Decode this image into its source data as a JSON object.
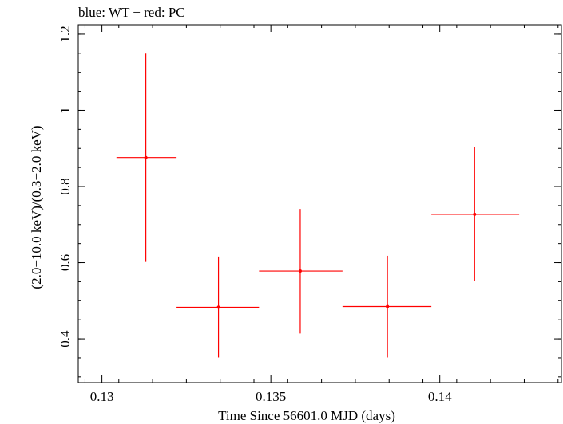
{
  "chart_data": {
    "type": "scatter",
    "title": "blue: WT − red: PC",
    "xlabel": "Time Since 56601.0 MJD (days)",
    "ylabel": "(2.0−10.0 keV)/(0.3−2.0 keV)",
    "xlim": [
      0.1293,
      0.1436
    ],
    "ylim": [
      0.285,
      1.225
    ],
    "x_ticks": [
      0.13,
      0.135,
      0.14
    ],
    "x_tick_labels": [
      "0.13",
      "0.135",
      "0.14"
    ],
    "y_ticks": [
      0.4,
      0.6,
      0.8,
      1.0,
      1.2
    ],
    "y_tick_labels": [
      "0.4",
      "0.6",
      "0.8",
      "1",
      "1.2"
    ],
    "grid": false,
    "series": [
      {
        "name": "PC",
        "color": "#ff0000",
        "points": [
          {
            "x": 0.1313,
            "y": 0.876,
            "xerr_low": 0.13043,
            "xerr_high": 0.13221,
            "yerr_low": 0.602,
            "yerr_high": 1.149
          },
          {
            "x": 0.13345,
            "y": 0.483,
            "xerr_low": 0.13221,
            "xerr_high": 0.13465,
            "yerr_low": 0.351,
            "yerr_high": 0.616
          },
          {
            "x": 0.13587,
            "y": 0.578,
            "xerr_low": 0.13465,
            "xerr_high": 0.13712,
            "yerr_low": 0.414,
            "yerr_high": 0.741
          },
          {
            "x": 0.13845,
            "y": 0.485,
            "xerr_low": 0.13712,
            "xerr_high": 0.13975,
            "yerr_low": 0.351,
            "yerr_high": 0.618
          },
          {
            "x": 0.14103,
            "y": 0.727,
            "xerr_low": 0.13975,
            "xerr_high": 0.14235,
            "yerr_low": 0.552,
            "yerr_high": 0.903
          }
        ]
      }
    ]
  }
}
